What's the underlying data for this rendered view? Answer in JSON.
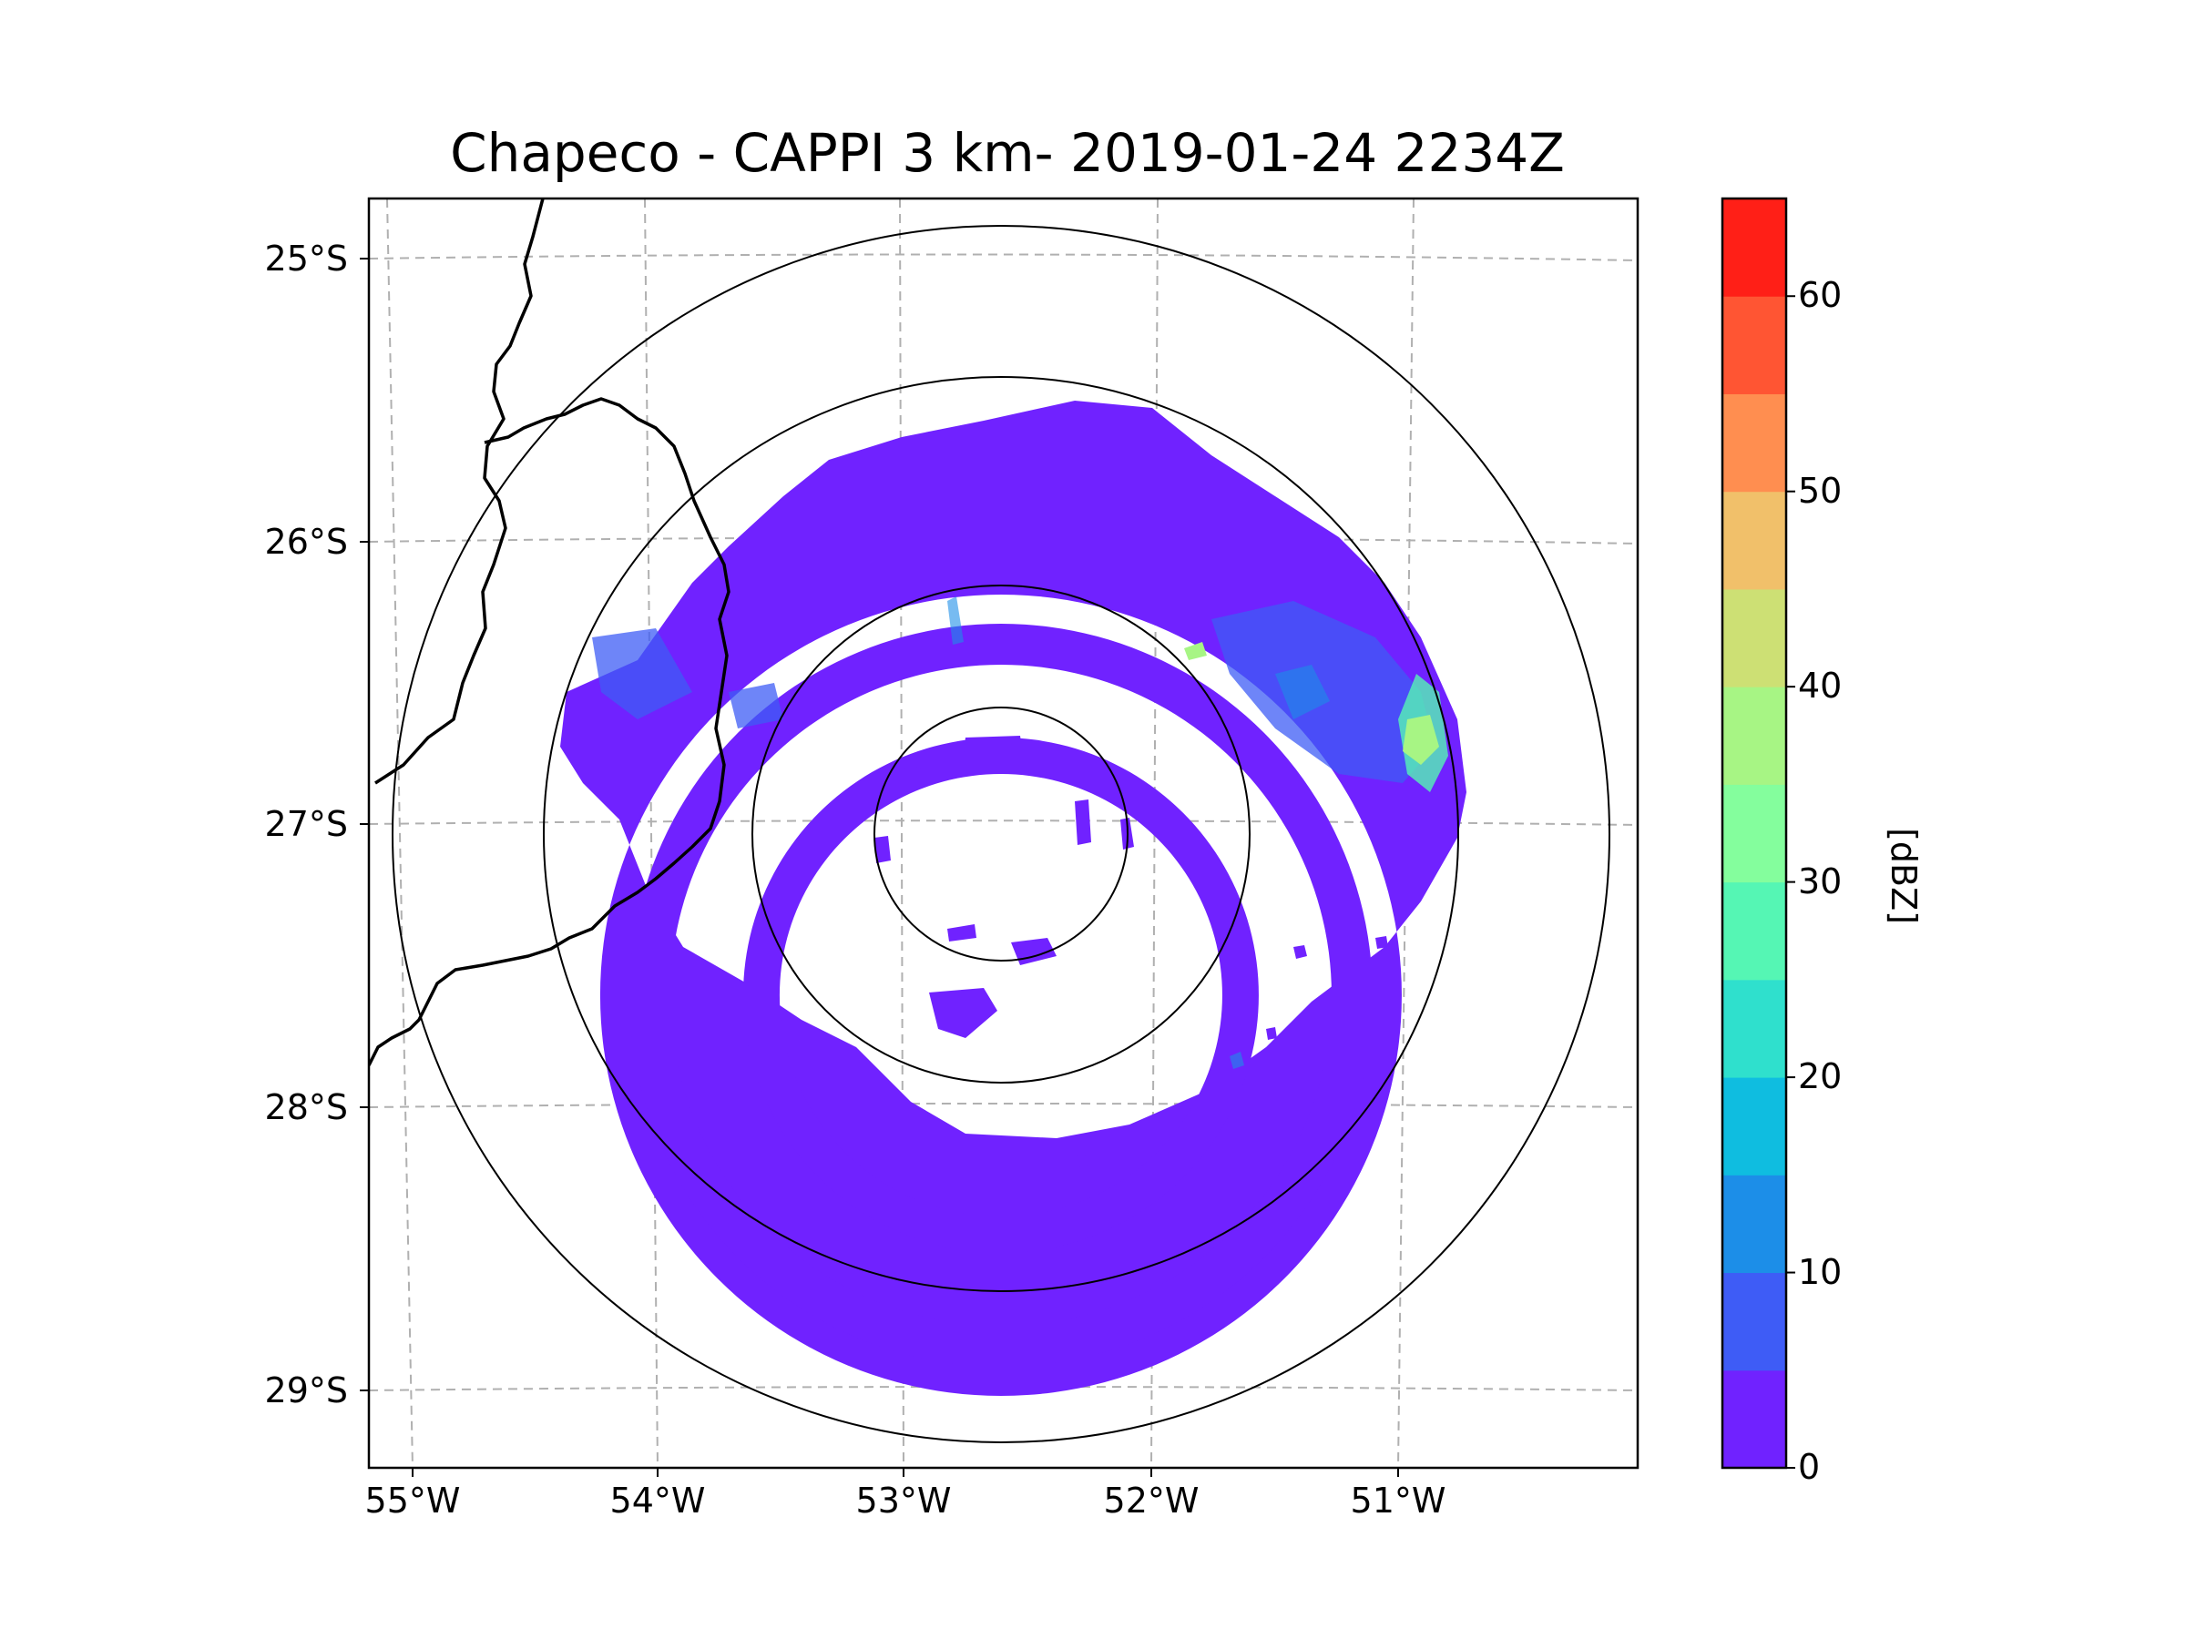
{
  "title": "Chapeco - CAPPI 3 km- 2019-01-24 2234Z",
  "lat_labels": [
    "25°S",
    "26°S",
    "27°S",
    "28°S",
    "29°S"
  ],
  "lon_labels": [
    "55°W",
    "54°W",
    "53°W",
    "52°W",
    "51°W"
  ],
  "colorbar": {
    "label": "[dBZ]",
    "ticks": [
      "0",
      "10",
      "20",
      "30",
      "40",
      "50",
      "60"
    ],
    "min": 0,
    "max": 65,
    "bins": [
      {
        "from": 0,
        "to": 5,
        "color": "#7022ff"
      },
      {
        "from": 5,
        "to": 10,
        "color": "#3e5cf6"
      },
      {
        "from": 10,
        "to": 15,
        "color": "#1c8ee8"
      },
      {
        "from": 15,
        "to": 20,
        "color": "#0fbde0"
      },
      {
        "from": 20,
        "to": 25,
        "color": "#2fe0cd"
      },
      {
        "from": 25,
        "to": 30,
        "color": "#55f6b4"
      },
      {
        "from": 30,
        "to": 35,
        "color": "#84fe9d"
      },
      {
        "from": 35,
        "to": 40,
        "color": "#a7f584"
      },
      {
        "from": 40,
        "to": 45,
        "color": "#cde074"
      },
      {
        "from": 45,
        "to": 50,
        "color": "#f1c06a"
      },
      {
        "from": 50,
        "to": 55,
        "color": "#ff8e50"
      },
      {
        "from": 55,
        "to": 60,
        "color": "#ff5533"
      },
      {
        "from": 60,
        "to": 65,
        "color": "#ff1f17"
      }
    ]
  },
  "colors": {
    "echo_main": "#7022ff",
    "echo_weak": "#3e5cf6",
    "echo_moderate": "#1c8ee8",
    "echo_strong": "#55f6b4",
    "echo_strongest": "#a7f584",
    "grid": "#b0b0b0",
    "border": "#000000"
  }
}
